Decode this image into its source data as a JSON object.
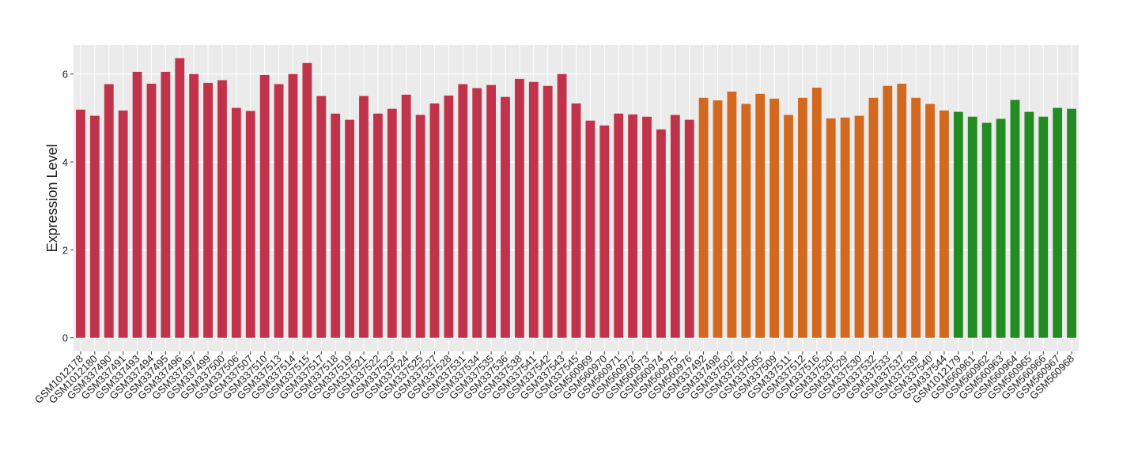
{
  "chart_data": {
    "type": "bar",
    "y_label": "Expression Level",
    "categories": [
      "GSM1012178",
      "GSM1012180",
      "GSM337490",
      "GSM337491",
      "GSM337493",
      "GSM337494",
      "GSM337495",
      "GSM337496",
      "GSM337497",
      "GSM337499",
      "GSM337500",
      "GSM337506",
      "GSM337507",
      "GSM337510",
      "GSM337513",
      "GSM337514",
      "GSM337515",
      "GSM337517",
      "GSM337518",
      "GSM337519",
      "GSM337521",
      "GSM337522",
      "GSM337523",
      "GSM337524",
      "GSM337525",
      "GSM337527",
      "GSM337528",
      "GSM337531",
      "GSM337534",
      "GSM337535",
      "GSM337536",
      "GSM337538",
      "GSM337541",
      "GSM337542",
      "GSM337543",
      "GSM337545",
      "GSM560969",
      "GSM560970",
      "GSM560971",
      "GSM560972",
      "GSM560973",
      "GSM560974",
      "GSM560975",
      "GSM560976",
      "GSM337492",
      "GSM337498",
      "GSM337502",
      "GSM337504",
      "GSM337505",
      "GSM337509",
      "GSM337511",
      "GSM337512",
      "GSM337516",
      "GSM337520",
      "GSM337529",
      "GSM337530",
      "GSM337532",
      "GSM337533",
      "GSM337537",
      "GSM337539",
      "GSM337540",
      "GSM337544",
      "GSM1012179",
      "GSM560961",
      "GSM560962",
      "GSM560963",
      "GSM560964",
      "GSM560965",
      "GSM560966",
      "GSM560967",
      "GSM560968"
    ],
    "values": [
      5.19,
      5.05,
      5.77,
      5.17,
      6.05,
      5.78,
      6.05,
      6.36,
      6.0,
      5.8,
      5.86,
      5.23,
      5.16,
      5.98,
      5.77,
      6.0,
      6.25,
      5.5,
      5.1,
      4.96,
      5.5,
      5.1,
      5.21,
      5.53,
      5.07,
      5.33,
      5.51,
      5.77,
      5.68,
      5.75,
      5.48,
      5.89,
      5.82,
      5.73,
      6.0,
      5.33,
      4.94,
      4.83,
      5.1,
      5.08,
      5.03,
      4.74,
      5.07,
      4.96,
      5.46,
      5.4,
      5.6,
      5.32,
      5.55,
      5.44,
      5.07,
      5.46,
      5.69,
      4.99,
      5.01,
      5.05,
      5.46,
      5.73,
      5.78,
      5.46,
      5.32,
      5.17,
      5.14,
      5.03,
      4.89,
      4.98,
      5.41,
      5.14,
      5.03,
      5.23,
      5.21
    ],
    "colors": [
      "#c1334a",
      "#c1334a",
      "#c1334a",
      "#c1334a",
      "#c1334a",
      "#c1334a",
      "#c1334a",
      "#c1334a",
      "#c1334a",
      "#c1334a",
      "#c1334a",
      "#c1334a",
      "#c1334a",
      "#c1334a",
      "#c1334a",
      "#c1334a",
      "#c1334a",
      "#c1334a",
      "#c1334a",
      "#c1334a",
      "#c1334a",
      "#c1334a",
      "#c1334a",
      "#c1334a",
      "#c1334a",
      "#c1334a",
      "#c1334a",
      "#c1334a",
      "#c1334a",
      "#c1334a",
      "#c1334a",
      "#c1334a",
      "#c1334a",
      "#c1334a",
      "#c1334a",
      "#c1334a",
      "#c1334a",
      "#c1334a",
      "#c1334a",
      "#c1334a",
      "#c1334a",
      "#c1334a",
      "#c1334a",
      "#c1334a",
      "#d2691e",
      "#d2691e",
      "#d2691e",
      "#d2691e",
      "#d2691e",
      "#d2691e",
      "#d2691e",
      "#d2691e",
      "#d2691e",
      "#d2691e",
      "#d2691e",
      "#d2691e",
      "#d2691e",
      "#d2691e",
      "#d2691e",
      "#d2691e",
      "#d2691e",
      "#d2691e",
      "#228b22",
      "#228b22",
      "#228b22",
      "#228b22",
      "#228b22",
      "#228b22",
      "#228b22",
      "#228b22",
      "#228b22"
    ],
    "ylim": [
      -0.31,
      6.66
    ],
    "yticks": [
      0,
      2,
      4,
      6
    ],
    "grid": true
  }
}
